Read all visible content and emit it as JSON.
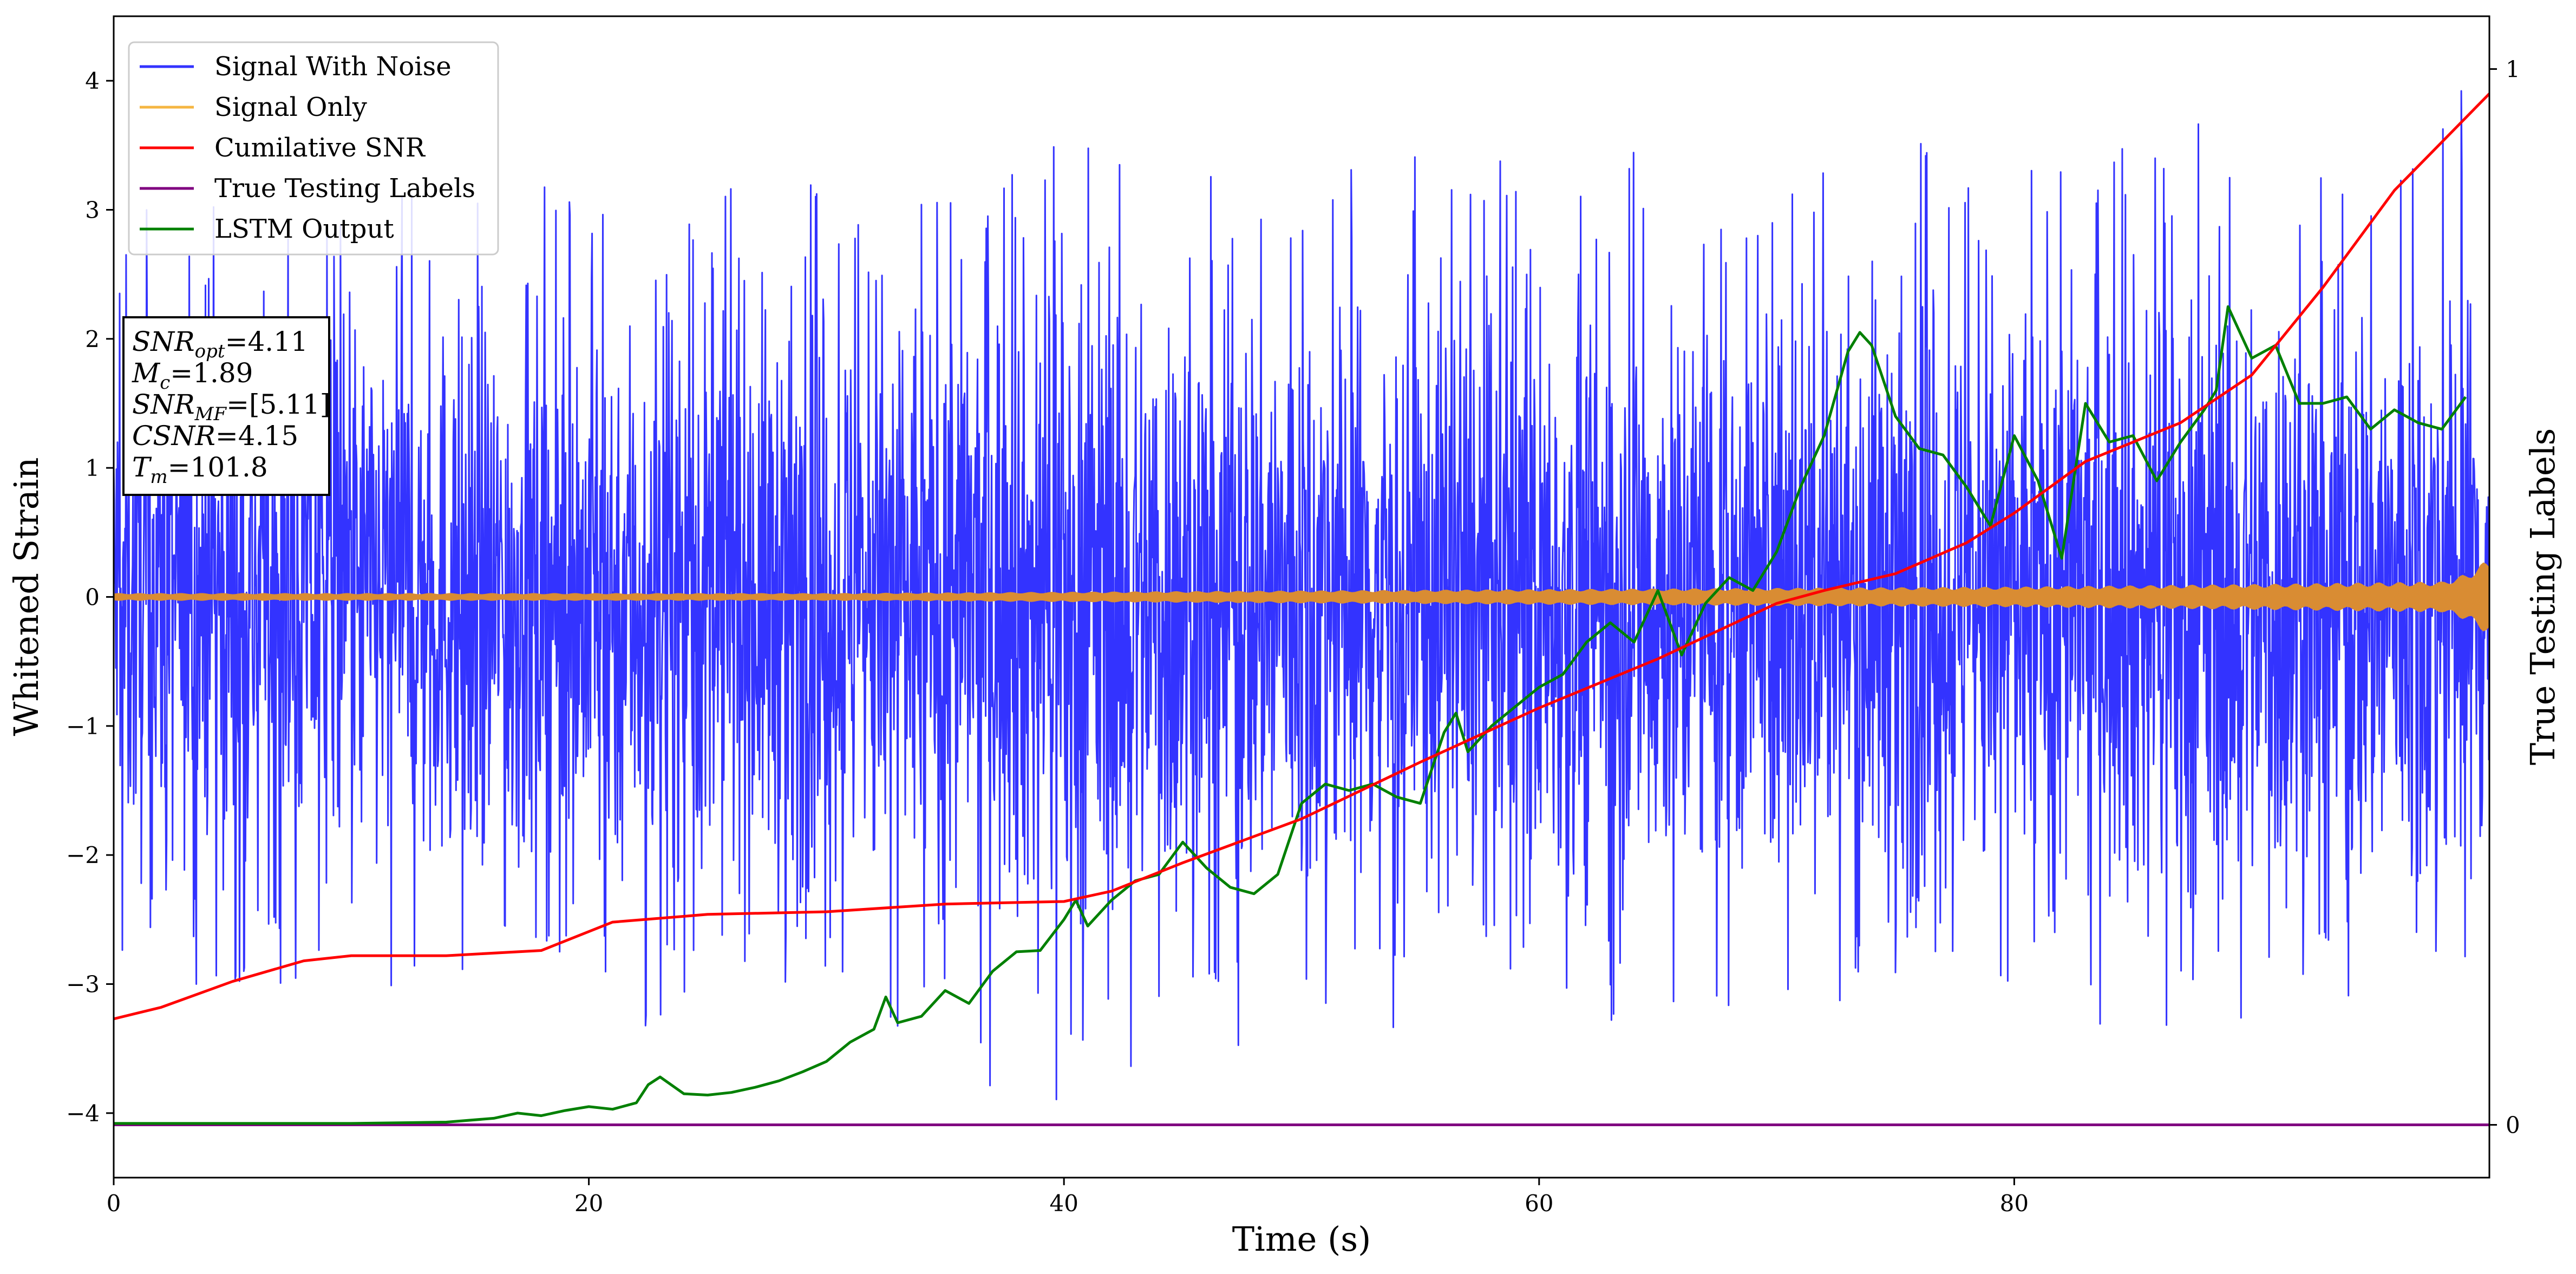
{
  "chart_data": {
    "type": "line",
    "xlabel": "Time (s)",
    "ylabel": "Whitened Strain",
    "y2label": "True Testing Labels",
    "xlim": [
      0,
      100
    ],
    "ylim": [
      -4.5,
      4.5
    ],
    "y2lim": [
      -0.05,
      1.05
    ],
    "xticks": [
      0,
      20,
      40,
      60,
      80
    ],
    "yticks": [
      -4,
      -3,
      -2,
      -1,
      0,
      1,
      2,
      3,
      4
    ],
    "y2ticks": [
      0,
      1
    ],
    "grid": false,
    "legend_position": "top-left",
    "legend": [
      "Signal With Noise",
      "Signal Only",
      "Cumilative SNR",
      "True Testing Labels",
      "LSTM Output"
    ],
    "series": [
      {
        "name": "Signal With Noise",
        "color": "#3333ff",
        "axis": "left",
        "style": "dense-noise",
        "envelope": {
          "x": [
            0,
            10,
            20,
            30,
            40,
            50,
            60,
            70,
            80,
            90,
            100
          ],
          "upper": [
            3.0,
            3.1,
            3.2,
            3.2,
            3.5,
            3.4,
            3.5,
            3.4,
            3.6,
            3.7,
            4.1
          ],
          "lower": [
            -3.0,
            -3.0,
            -3.3,
            -3.4,
            -4.0,
            -3.6,
            -3.3,
            -3.4,
            -3.2,
            -3.5,
            -3.0
          ]
        }
      },
      {
        "name": "Signal Only",
        "color": "#d98c33",
        "axis": "left",
        "style": "band",
        "x": [
          0,
          10,
          20,
          30,
          40,
          50,
          60,
          70,
          80,
          90,
          98,
          99,
          100
        ],
        "amplitude": [
          0.03,
          0.03,
          0.03,
          0.03,
          0.04,
          0.05,
          0.06,
          0.07,
          0.08,
          0.1,
          0.12,
          0.18,
          0.3
        ]
      },
      {
        "name": "Cumilative SNR",
        "color": "#ff0000",
        "axis": "left",
        "x": [
          0,
          2,
          5,
          8,
          10,
          14,
          18,
          21,
          25,
          30,
          35,
          40,
          42,
          45,
          50,
          55,
          60,
          65,
          70,
          72,
          75,
          78,
          80,
          83,
          87,
          90,
          93,
          96,
          100
        ],
        "y": [
          -3.27,
          -3.18,
          -2.98,
          -2.82,
          -2.78,
          -2.78,
          -2.74,
          -2.52,
          -2.46,
          -2.44,
          -2.38,
          -2.36,
          -2.28,
          -2.06,
          -1.72,
          -1.28,
          -0.86,
          -0.48,
          -0.05,
          0.05,
          0.18,
          0.42,
          0.65,
          1.05,
          1.35,
          1.72,
          2.4,
          3.15,
          3.9
        ]
      },
      {
        "name": "True Testing Labels",
        "color": "#800080",
        "axis": "right",
        "x": [
          0,
          100
        ],
        "y": [
          0,
          0
        ]
      },
      {
        "name": "LSTM Output",
        "color": "#008000",
        "axis": "left",
        "x": [
          0,
          10,
          14,
          16,
          17,
          18,
          19,
          20,
          21,
          22,
          22.5,
          23,
          24,
          25,
          26,
          27,
          28,
          29,
          30,
          31,
          32,
          32.5,
          33,
          34,
          35,
          36,
          37,
          38,
          39,
          40,
          40.5,
          41,
          42,
          43,
          44,
          45,
          46,
          47,
          48,
          49,
          50,
          51,
          52,
          53,
          54,
          55,
          56,
          56.5,
          57,
          58,
          59,
          60,
          61,
          62,
          63,
          64,
          65,
          66,
          67,
          68,
          69,
          70,
          71,
          72,
          73,
          73.5,
          74,
          75,
          76,
          77,
          78,
          79,
          80,
          81,
          82,
          83,
          84,
          85,
          86,
          87,
          88,
          88.5,
          89,
          90,
          91,
          92,
          93,
          94,
          95,
          96,
          97,
          98,
          99
        ],
        "y": [
          -4.08,
          -4.08,
          -4.07,
          -4.04,
          -4.0,
          -4.02,
          -3.98,
          -3.95,
          -3.97,
          -3.92,
          -3.78,
          -3.72,
          -3.85,
          -3.86,
          -3.84,
          -3.8,
          -3.75,
          -3.68,
          -3.6,
          -3.45,
          -3.35,
          -3.1,
          -3.3,
          -3.25,
          -3.05,
          -3.15,
          -2.9,
          -2.75,
          -2.74,
          -2.5,
          -2.35,
          -2.55,
          -2.35,
          -2.2,
          -2.15,
          -1.9,
          -2.1,
          -2.25,
          -2.3,
          -2.15,
          -1.6,
          -1.45,
          -1.5,
          -1.45,
          -1.55,
          -1.6,
          -1.05,
          -0.9,
          -1.2,
          -1.0,
          -0.85,
          -0.7,
          -0.6,
          -0.35,
          -0.2,
          -0.35,
          0.05,
          -0.45,
          -0.05,
          0.15,
          0.05,
          0.35,
          0.85,
          1.25,
          1.9,
          2.05,
          1.95,
          1.4,
          1.15,
          1.1,
          0.85,
          0.55,
          1.25,
          0.9,
          0.3,
          1.5,
          1.2,
          1.25,
          0.9,
          1.2,
          1.45,
          1.6,
          2.25,
          1.85,
          1.95,
          1.5,
          1.5,
          1.55,
          1.3,
          1.45,
          1.35,
          1.3,
          1.55
        ]
      }
    ]
  },
  "info_box": {
    "snr_opt_base": "SNR",
    "snr_opt_sub": "opt",
    "snr_opt_value": "=4.11",
    "mc_base": "M",
    "mc_sub": "c",
    "mc_value": "=1.89",
    "snr_mf_base": "SNR",
    "snr_mf_sub": "MF",
    "snr_mf_value": "=[5.11]",
    "csnr_base": "CSNR",
    "csnr_value": "=4.15",
    "tm_base": "T",
    "tm_sub": "m",
    "tm_value": "=101.8"
  }
}
